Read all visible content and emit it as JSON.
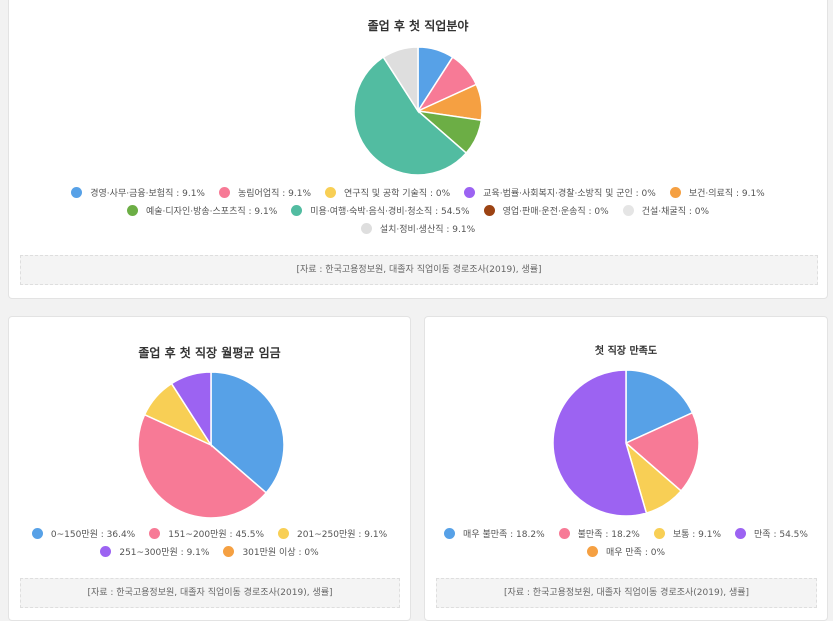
{
  "chart_data": [
    {
      "type": "pie",
      "title": "졸업 후 첫 직업분야",
      "unit": "%",
      "categories": [
        "경영·사무·금융·보험직",
        "농림어업직",
        "연구직 및 공학 기술직",
        "교육·법률·사회복지·경찰·소방직 및 군인",
        "보건·의료직",
        "예술·디자인·방송·스포츠직",
        "미용·여행·숙박·음식·경비·청소직",
        "영업·판매·운전·운송직",
        "건설·채굴직",
        "설치·정비·생산직"
      ],
      "values": [
        9.1,
        9.1,
        0,
        0,
        9.1,
        9.1,
        54.5,
        0,
        0,
        9.1
      ],
      "colors": [
        "#57a1e7",
        "#f77a96",
        "#f8cf55",
        "#9c63f2",
        "#f5a042",
        "#6cae45",
        "#52bca1",
        "#9c4313",
        "#e5e5e5",
        "#dedede"
      ],
      "legend_labels": [
        "경영·사무·금융·보험직 : 9.1%",
        "농림어업직 : 9.1%",
        "연구직 및 공학 기술직 : 0%",
        "교육·법률·사회복지·경찰·소방직 및 군인 : 0%",
        "보건·의료직 : 9.1%",
        "예술·디자인·방송·스포츠직 : 9.1%",
        "미용·여행·숙박·음식·경비·청소직 : 54.5%",
        "영업·판매·운전·운송직 : 0%",
        "건설·채굴직 : 0%",
        "설치·정비·생산직 : 9.1%"
      ],
      "source": "[자료 : 한국고용정보원, 대졸자 직업이동 경로조사(2019), 생률]"
    },
    {
      "type": "pie",
      "title": "졸업 후 첫 직장 월평균 임금",
      "unit": "%",
      "categories": [
        "0~150만원",
        "151~200만원",
        "201~250만원",
        "251~300만원",
        "301만원 이상"
      ],
      "values": [
        36.4,
        45.5,
        9.1,
        9.1,
        0
      ],
      "colors": [
        "#57a1e7",
        "#f77a96",
        "#f8cf55",
        "#9c63f2",
        "#f5a042"
      ],
      "legend_labels": [
        "0~150만원 : 36.4%",
        "151~200만원 : 45.5%",
        "201~250만원 : 9.1%",
        "251~300만원 : 9.1%",
        "301만원 이상 : 0%"
      ],
      "source": "[자료 : 한국고용정보원, 대졸자 직업이동 경로조사(2019), 생률]"
    },
    {
      "type": "pie",
      "title": "첫 직장 만족도",
      "unit": "%",
      "categories": [
        "매우 불만족",
        "불만족",
        "보통",
        "만족",
        "매우 만족"
      ],
      "values": [
        18.2,
        18.2,
        9.1,
        54.5,
        0
      ],
      "colors": [
        "#57a1e7",
        "#f77a96",
        "#f8cf55",
        "#9c63f2",
        "#f5a042"
      ],
      "legend_labels": [
        "매우 불만족 : 18.2%",
        "불만족 : 18.2%",
        "보통 : 9.1%",
        "만족 : 54.5%",
        "매우 만족 : 0%"
      ],
      "source": "[자료 : 한국고용정보원, 대졸자 직업이동 경로조사(2019), 생률]"
    }
  ]
}
